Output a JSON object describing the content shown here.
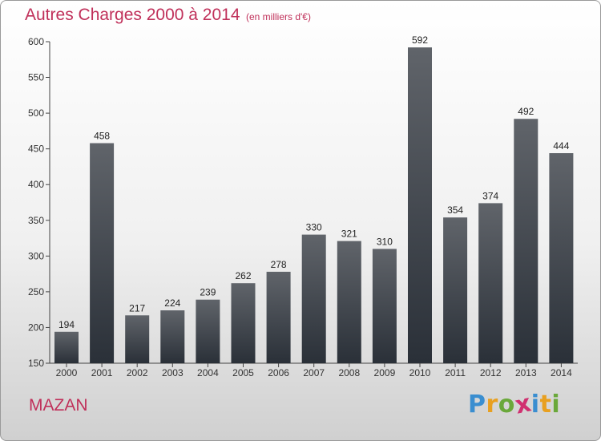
{
  "title": "Autres Charges 2000 à 2014",
  "subtitle": "(en milliers d'€)",
  "city": "MAZAN",
  "logo": {
    "letters": [
      "P",
      "r",
      "o",
      "x",
      "i",
      "t",
      "i"
    ],
    "colors": [
      "#3a8ed0",
      "#e8a020",
      "#6aa83a",
      "#d03070",
      "#3a8ed0",
      "#e8a020",
      "#6aa83a"
    ]
  },
  "colors": {
    "bar_top": "#60646a",
    "bar_bottom": "#2a3038",
    "text_accent": "#c0305a"
  },
  "chart_data": {
    "type": "bar",
    "title": "Autres Charges 2000 à 2014",
    "subtitle": "(en milliers d'€)",
    "categories": [
      "2000",
      "2001",
      "2002",
      "2003",
      "2004",
      "2005",
      "2006",
      "2007",
      "2008",
      "2009",
      "2010",
      "2011",
      "2012",
      "2013",
      "2014"
    ],
    "values": [
      194,
      458,
      217,
      224,
      239,
      262,
      278,
      330,
      321,
      310,
      592,
      354,
      374,
      492,
      444
    ],
    "ylim": [
      150,
      600
    ],
    "yticks": [
      150,
      200,
      250,
      300,
      350,
      400,
      450,
      500,
      550,
      600
    ],
    "grid": false,
    "legend": "none"
  }
}
